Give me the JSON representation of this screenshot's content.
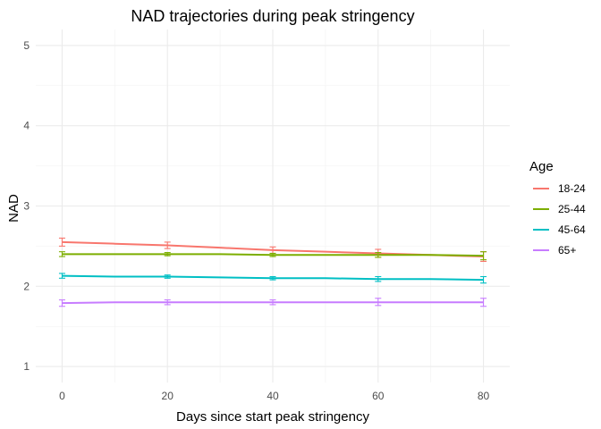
{
  "chart_data": {
    "type": "line",
    "title": "NAD trajectories during peak stringency",
    "xlabel": "Days since start peak stringency",
    "ylabel": "NAD",
    "xlim": [
      -5,
      85
    ],
    "ylim": [
      0.8,
      5.2
    ],
    "x_ticks": [
      0,
      20,
      40,
      60,
      80
    ],
    "y_ticks": [
      1,
      2,
      3,
      4,
      5
    ],
    "grid": true,
    "legend": {
      "title": "Age",
      "placement": "right"
    },
    "x": [
      0,
      10,
      20,
      30,
      40,
      50,
      60,
      70,
      80
    ],
    "error_bar_x": [
      0,
      20,
      40,
      60,
      80
    ],
    "series": [
      {
        "name": "18-24",
        "color": "#F8766D",
        "values": [
          2.55,
          2.53,
          2.51,
          2.48,
          2.45,
          2.43,
          2.41,
          2.39,
          2.37
        ],
        "error_bars": [
          [
            2.5,
            2.6
          ],
          [
            2.47,
            2.55
          ],
          [
            2.41,
            2.49
          ],
          [
            2.36,
            2.46
          ],
          [
            2.31,
            2.43
          ]
        ]
      },
      {
        "name": "25-44",
        "color": "#7CAE00",
        "values": [
          2.4,
          2.4,
          2.4,
          2.4,
          2.39,
          2.39,
          2.39,
          2.39,
          2.38
        ],
        "error_bars": [
          [
            2.37,
            2.43
          ],
          [
            2.38,
            2.42
          ],
          [
            2.37,
            2.41
          ],
          [
            2.36,
            2.42
          ],
          [
            2.33,
            2.43
          ]
        ]
      },
      {
        "name": "45-64",
        "color": "#00BFC4",
        "values": [
          2.13,
          2.12,
          2.12,
          2.11,
          2.1,
          2.1,
          2.09,
          2.09,
          2.08
        ],
        "error_bars": [
          [
            2.1,
            2.16
          ],
          [
            2.1,
            2.14
          ],
          [
            2.08,
            2.12
          ],
          [
            2.06,
            2.12
          ],
          [
            2.04,
            2.12
          ]
        ]
      },
      {
        "name": "65+",
        "color": "#C77CFF",
        "values": [
          1.79,
          1.8,
          1.8,
          1.8,
          1.8,
          1.8,
          1.8,
          1.8,
          1.8
        ],
        "error_bars": [
          [
            1.75,
            1.83
          ],
          [
            1.77,
            1.83
          ],
          [
            1.77,
            1.83
          ],
          [
            1.76,
            1.85
          ],
          [
            1.75,
            1.85
          ]
        ]
      }
    ]
  }
}
